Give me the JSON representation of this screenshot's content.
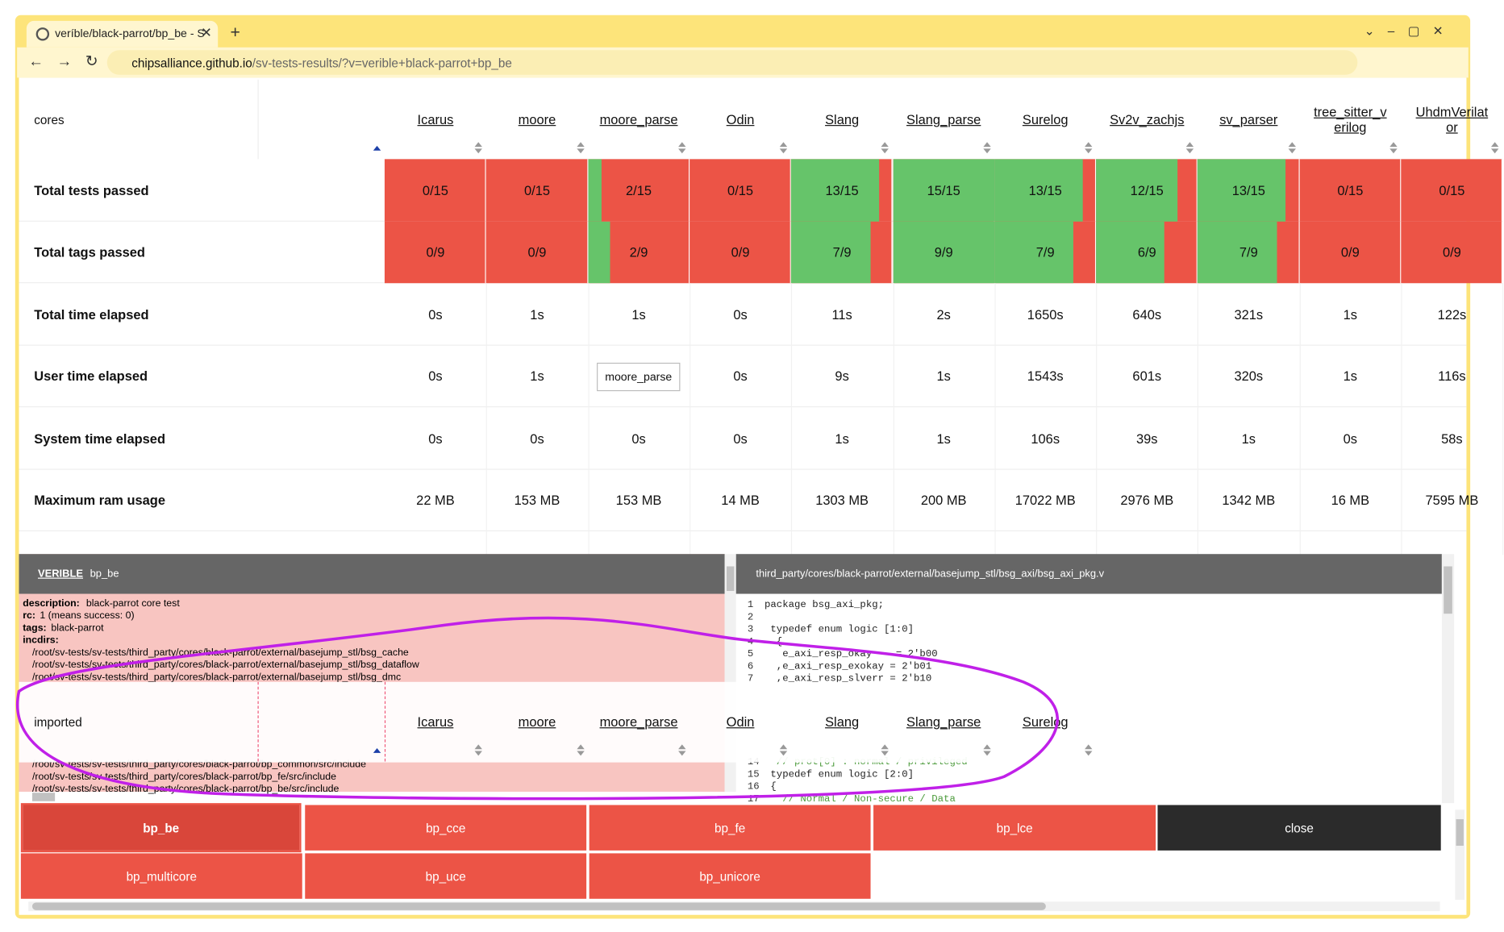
{
  "browser": {
    "tab_title": "veríble/black-parrot/bp_be - S",
    "url_host": "chipsalliance.github.io",
    "url_path": "/sv-tests-results/?v=verible+black-parrot+bp_be"
  },
  "table": {
    "corner": "cores",
    "columns": [
      "Icarus",
      "moore",
      "moore_parse",
      "Odin",
      "Slang",
      "Slang_parse",
      "Surelog",
      "Sv2v_zachjs",
      "sv_parser",
      "tree_sitter_verilog",
      "UhdmVerilator"
    ],
    "rows": [
      {
        "label": "Total tests passed",
        "bar": true,
        "values": [
          "0/15",
          "0/15",
          "2/15",
          "0/15",
          "13/15",
          "15/15",
          "13/15",
          "12/15",
          "13/15",
          "0/15",
          "0/15"
        ]
      },
      {
        "label": "Total tags passed",
        "bar": true,
        "values": [
          "0/9",
          "0/9",
          "2/9",
          "0/9",
          "7/9",
          "9/9",
          "7/9",
          "6/9",
          "7/9",
          "0/9",
          "0/9"
        ]
      },
      {
        "label": "Total time elapsed",
        "values": [
          "0s",
          "1s",
          "1s",
          "0s",
          "11s",
          "2s",
          "1650s",
          "640s",
          "321s",
          "1s",
          "122s"
        ]
      },
      {
        "label": "User time elapsed",
        "values": [
          "0s",
          "1s",
          null,
          "0s",
          "9s",
          "1s",
          "1543s",
          "601s",
          "320s",
          "1s",
          "116s"
        ]
      },
      {
        "label": "System time elapsed",
        "values": [
          "0s",
          "0s",
          "0s",
          "0s",
          "1s",
          "1s",
          "106s",
          "39s",
          "1s",
          "0s",
          "58s"
        ]
      },
      {
        "label": "Maximum ram usage",
        "values": [
          "22 MB",
          "153 MB",
          "153 MB",
          "14 MB",
          "1303 MB",
          "200 MB",
          "17022 MB",
          "2976 MB",
          "1342 MB",
          "16 MB",
          "7595 MB"
        ]
      }
    ]
  },
  "tooltip": "moore_parse",
  "log_panel": {
    "tool": "VERIBLE",
    "test": "bp_be",
    "fields": [
      {
        "label": "description:",
        "text": "black-parrot core test"
      },
      {
        "label": "rc:",
        "text": "1 (means success: 0)"
      },
      {
        "label": "tags:",
        "text": "black-parrot"
      },
      {
        "label": "incdirs:"
      }
    ],
    "incdirs_top": [
      "/root/sv-tests/sv-tests/third_party/cores/black-parrot/external/basejump_stl/bsg_cache",
      "/root/sv-tests/sv-tests/third_party/cores/black-parrot/external/basejump_stl/bsg_dataflow",
      "/root/sv-tests/sv-tests/third_party/cores/black-parrot/external/basejump_stl/bsg_dmc"
    ],
    "incdirs_bottom": [
      "/root/sv-tests/sv-tests/third_party/cores/black-parrot/bp_common/src/include",
      "/root/sv-tests/sv-tests/third_party/cores/black-parrot/bp_fe/src/include",
      "/root/sv-tests/sv-tests/third_party/cores/black-parrot/bp_be/src/include"
    ]
  },
  "code_panel": {
    "file": "third_party/cores/black-parrot/external/basejump_stl/bsg_axi/bsg_axi_pkg.v",
    "lines_top": [
      {
        "n": 1,
        "text": "package bsg_axi_pkg;"
      },
      {
        "n": 2
      },
      {
        "n": 3,
        "text": " typedef enum logic [1:0]"
      },
      {
        "n": 4,
        "text": "  {"
      },
      {
        "n": 5,
        "text": "   e_axi_resp_okay    = 2'b00"
      },
      {
        "n": 6,
        "text": "  ,e_axi_resp_exokay = 2'b01"
      },
      {
        "n": 7,
        "text": "  ,e_axi_resp_slverr = 2'b10"
      }
    ],
    "lines_bottom": [
      {
        "n": 14,
        "text": "  // prot[0] : normal / privileged"
      },
      {
        "n": 15,
        "text": " typedef enum logic [2:0]"
      },
      {
        "n": 16,
        "text": " {"
      },
      {
        "n": 17,
        "text": "   // Normal / Non-secure / Data"
      }
    ]
  },
  "sticky_header": {
    "corner": "imported",
    "columns": [
      "Icarus",
      "moore",
      "moore_parse",
      "Odin",
      "Slang",
      "Slang_parse",
      "Surelog"
    ]
  },
  "buttons": [
    [
      "bp_be",
      "bp_cce",
      "bp_fe",
      "bp_lce",
      "close"
    ],
    [
      "bp_multicore",
      "bp_uce",
      "bp_unicore"
    ]
  ],
  "active_button": "bp_be"
}
